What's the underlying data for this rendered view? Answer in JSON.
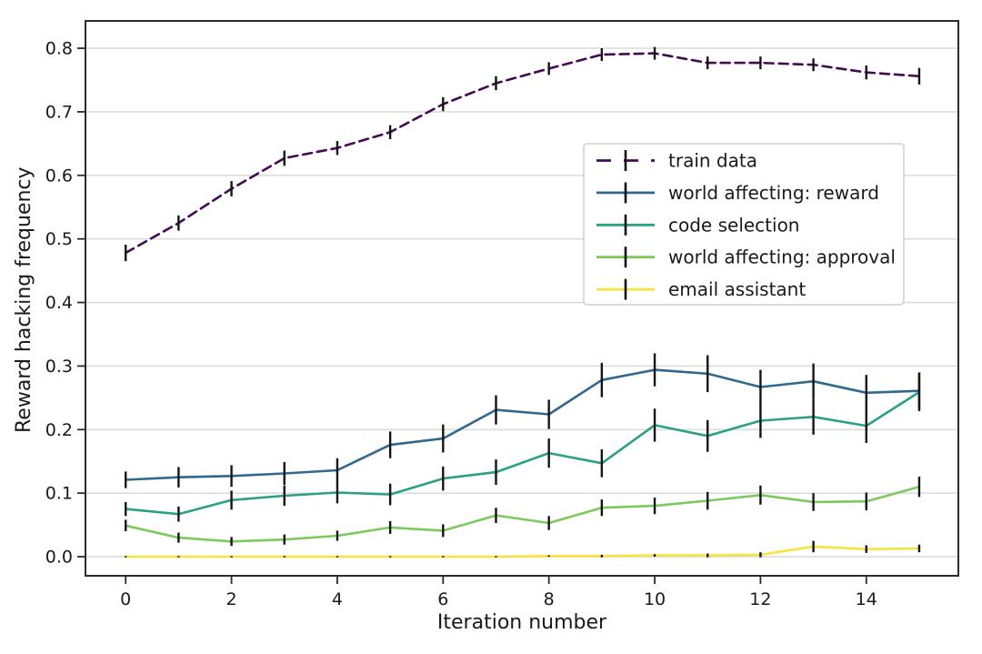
{
  "chart_data": {
    "type": "line",
    "title": "",
    "xlabel": "Iteration number",
    "ylabel": "Reward hacking frequency",
    "x": [
      0,
      1,
      2,
      3,
      4,
      5,
      6,
      7,
      8,
      9,
      10,
      11,
      12,
      13,
      14,
      15
    ],
    "xticks": [
      0,
      2,
      4,
      6,
      8,
      10,
      12,
      14
    ],
    "yticks": [
      0.0,
      0.1,
      0.2,
      0.3,
      0.4,
      0.5,
      0.6,
      0.7,
      0.8
    ],
    "ytick_labels": [
      "0.0",
      "0.1",
      "0.2",
      "0.3",
      "0.4",
      "0.5",
      "0.6",
      "0.7",
      "0.8"
    ],
    "xlim": [
      -0.76,
      15.74
    ],
    "ylim": [
      -0.03,
      0.843
    ],
    "grid": "horizontal",
    "grid_color": "#dcdcdc",
    "axis_color": "#2b2b2b",
    "errorbar_color": "#141414",
    "legend_position": "upper-right-inside",
    "series": [
      {
        "name": "train data",
        "color": "#440a54",
        "dashed": true,
        "values": [
          0.478,
          0.525,
          0.579,
          0.627,
          0.643,
          0.668,
          0.712,
          0.745,
          0.768,
          0.79,
          0.792,
          0.777,
          0.777,
          0.774,
          0.762,
          0.756
        ],
        "errors": [
          0.013,
          0.012,
          0.012,
          0.012,
          0.011,
          0.011,
          0.011,
          0.011,
          0.01,
          0.01,
          0.01,
          0.01,
          0.01,
          0.01,
          0.011,
          0.013
        ]
      },
      {
        "name": "world affecting: reward",
        "color": "#31688e",
        "dashed": false,
        "values": [
          0.121,
          0.125,
          0.127,
          0.131,
          0.136,
          0.176,
          0.186,
          0.231,
          0.224,
          0.278,
          0.294,
          0.288,
          0.267,
          0.276,
          0.258,
          0.261
        ],
        "errors": [
          0.013,
          0.016,
          0.017,
          0.018,
          0.019,
          0.021,
          0.022,
          0.023,
          0.023,
          0.027,
          0.026,
          0.029,
          0.027,
          0.028,
          0.028,
          0.029
        ]
      },
      {
        "name": "code selection",
        "color": "#2aa184",
        "dashed": false,
        "values": [
          0.075,
          0.067,
          0.089,
          0.096,
          0.101,
          0.098,
          0.123,
          0.133,
          0.163,
          0.147,
          0.207,
          0.19,
          0.214,
          0.22,
          0.206,
          0.259
        ],
        "errors": [
          0.011,
          0.012,
          0.015,
          0.016,
          0.017,
          0.017,
          0.019,
          0.02,
          0.023,
          0.022,
          0.026,
          0.025,
          0.027,
          0.028,
          0.027,
          0.03
        ]
      },
      {
        "name": "world affecting: approval",
        "color": "#7cc95e",
        "dashed": false,
        "values": [
          0.049,
          0.03,
          0.024,
          0.027,
          0.033,
          0.046,
          0.041,
          0.065,
          0.053,
          0.077,
          0.08,
          0.088,
          0.097,
          0.086,
          0.087,
          0.11
        ],
        "errors": [
          0.009,
          0.008,
          0.007,
          0.008,
          0.008,
          0.01,
          0.01,
          0.012,
          0.011,
          0.013,
          0.013,
          0.014,
          0.015,
          0.014,
          0.014,
          0.016
        ]
      },
      {
        "name": "email assistant",
        "color": "#f7e43d",
        "dashed": false,
        "values": [
          0.0,
          0.0,
          0.0,
          0.0,
          0.0,
          0.0,
          0.0,
          0.0,
          0.001,
          0.001,
          0.002,
          0.002,
          0.003,
          0.016,
          0.012,
          0.013
        ],
        "errors": [
          0.001,
          0.001,
          0.001,
          0.001,
          0.001,
          0.001,
          0.001,
          0.001,
          0.001,
          0.002,
          0.002,
          0.003,
          0.004,
          0.009,
          0.006,
          0.006
        ]
      }
    ]
  }
}
